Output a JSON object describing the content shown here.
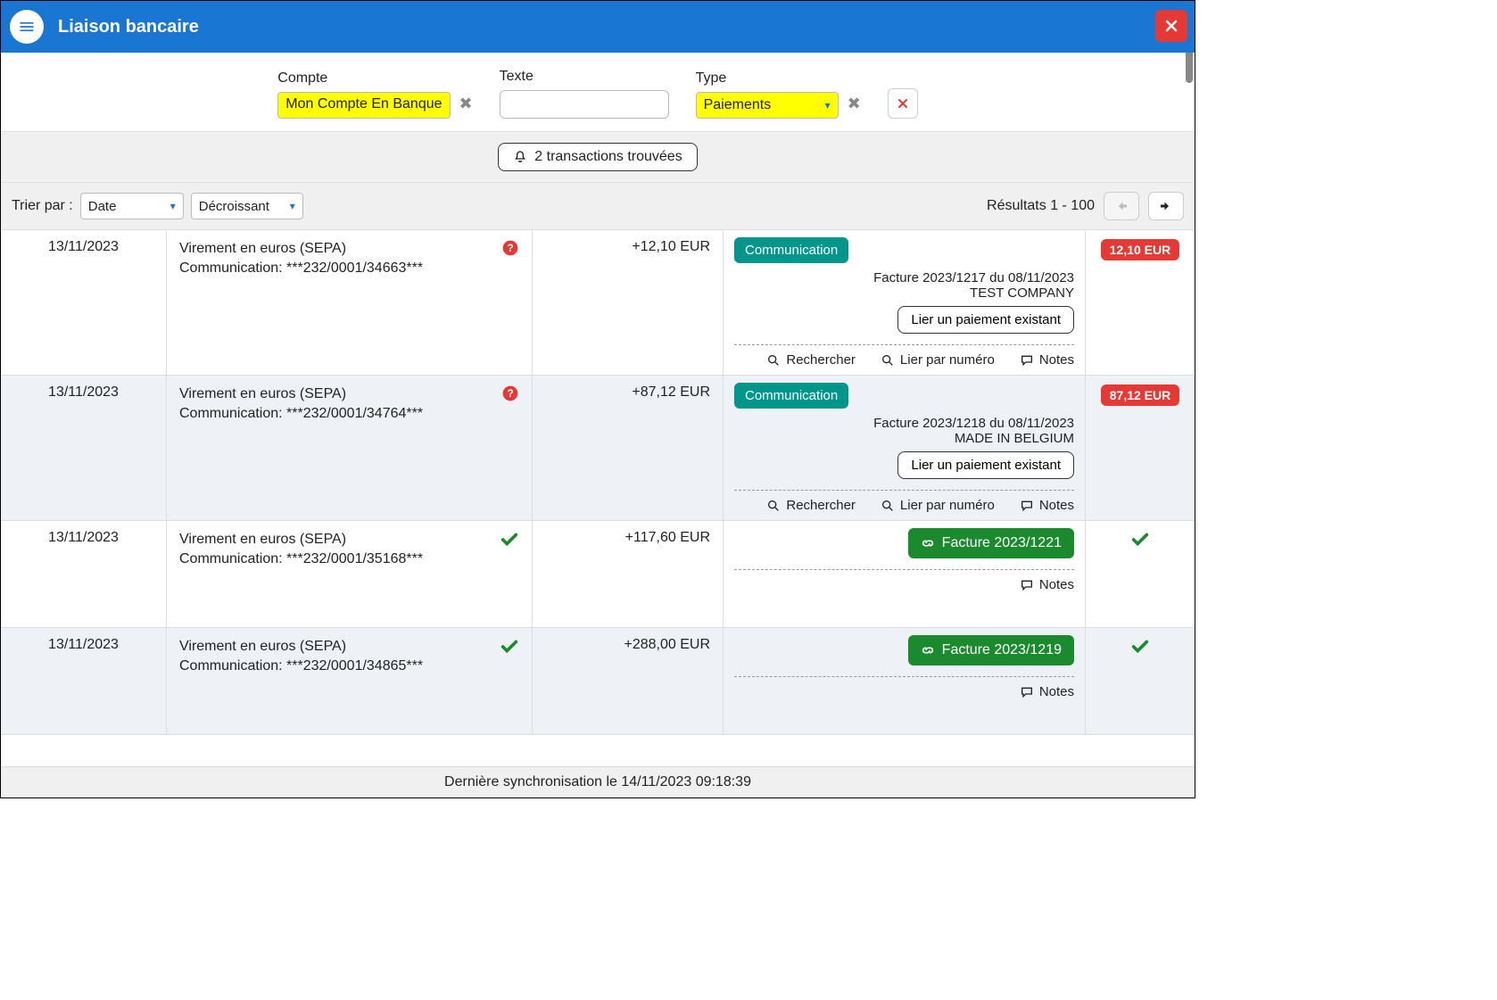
{
  "header": {
    "title": "Liaison bancaire"
  },
  "filters": {
    "account_label": "Compte",
    "account_value": "Mon Compte En Banque",
    "text_label": "Texte",
    "text_value": "",
    "type_label": "Type",
    "type_value": "Paiements"
  },
  "count_text": "2 transactions trouvées",
  "sort": {
    "label": "Trier par :",
    "field": "Date",
    "order": "Décroissant",
    "results_text": "Résultats 1 - 100"
  },
  "rows": [
    {
      "date": "13/11/2023",
      "desc_line1": "Virement en euros (SEPA)",
      "desc_line2": "Communication: ***232/0001/34663***",
      "status": "question",
      "amount": "+12,10 EUR",
      "badge_label": "Communication",
      "stat_amount": "12,10 EUR",
      "invoice_line1": "Facture 2023/1217 du 08/11/2023",
      "invoice_line2": "TEST COMPANY",
      "link_btn": "Lier un paiement existant",
      "actions": {
        "search": "Rechercher",
        "link_num": "Lier par numéro",
        "notes": "Notes"
      },
      "alt": false,
      "linked": false
    },
    {
      "date": "13/11/2023",
      "desc_line1": "Virement en euros (SEPA)",
      "desc_line2": "Communication: ***232/0001/34764***",
      "status": "question",
      "amount": "+87,12 EUR",
      "badge_label": "Communication",
      "stat_amount": "87,12 EUR",
      "invoice_line1": "Facture 2023/1218 du 08/11/2023",
      "invoice_line2": "MADE IN BELGIUM",
      "link_btn": "Lier un paiement existant",
      "actions": {
        "search": "Rechercher",
        "link_num": "Lier par numéro",
        "notes": "Notes"
      },
      "alt": true,
      "linked": false
    },
    {
      "date": "13/11/2023",
      "desc_line1": "Virement en euros (SEPA)",
      "desc_line2": "Communication: ***232/0001/35168***",
      "status": "check",
      "amount": "+117,60 EUR",
      "linked_label": "Facture 2023/1221",
      "actions": {
        "notes": "Notes"
      },
      "alt": false,
      "linked": true
    },
    {
      "date": "13/11/2023",
      "desc_line1": "Virement en euros (SEPA)",
      "desc_line2": "Communication: ***232/0001/34865***",
      "status": "check",
      "amount": "+288,00 EUR",
      "linked_label": "Facture 2023/1219",
      "actions": {
        "notes": "Notes"
      },
      "alt": true,
      "linked": true
    }
  ],
  "footer": "Dernière synchronisation le 14/11/2023 09:18:39",
  "colors": {
    "header_bg": "#1976d2",
    "highlight": "#ffff00",
    "red": "#e53935",
    "teal": "#00968c",
    "green": "#1b8a2f",
    "alt_row": "#eef2f6",
    "gray_bg": "#f0f0f0"
  }
}
